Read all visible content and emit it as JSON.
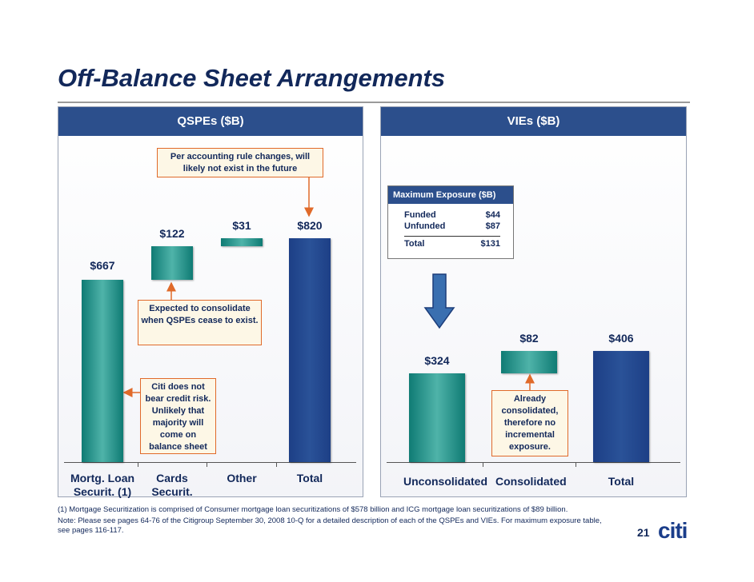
{
  "slide": {
    "title": "Off-Balance Sheet Arrangements",
    "footnotes": [
      "(1) Mortgage Securitization is comprised of Consumer mortgage loan securitizations of $578 billion and  ICG mortgage loan securitizations of $89 billion.",
      "Note: Please see pages 64-76 of the Citigroup September 30, 2008 10-Q for a detailed description of each of the QSPEs and VIEs.  For maximum exposure table, see pages 116-117."
    ],
    "page_number": "21",
    "logo": "citi"
  },
  "chart_data": [
    {
      "type": "waterfall",
      "title": "QSPEs ($B)",
      "categories": [
        "Mortg. Loan Securit. (1)",
        "Cards Securit.",
        "Other",
        "Total"
      ],
      "values": [
        667,
        122,
        31,
        820
      ],
      "value_labels": [
        "$667",
        "$122",
        "$31",
        "$820"
      ],
      "measures": [
        "absolute",
        "relative",
        "relative",
        "total"
      ],
      "colors": [
        "#0f7b74",
        "#0f7b74",
        "#0f7b74",
        "#2a5298"
      ],
      "annotations": [
        "Per accounting rule changes, will likely not exist in the future",
        "Expected to consolidate when QSPEs cease to exist.",
        "Citi does not bear credit risk. Unlikely that majority will come on balance sheet"
      ]
    },
    {
      "type": "waterfall",
      "title": "VIEs ($B)",
      "categories": [
        "Unconsolidated",
        "Consolidated",
        "Total"
      ],
      "values": [
        324,
        82,
        406
      ],
      "value_labels": [
        "$324",
        "$82",
        "$406"
      ],
      "measures": [
        "absolute",
        "relative",
        "total"
      ],
      "colors": [
        "#0f7b74",
        "#0f7b74",
        "#2a5298"
      ],
      "annotations": [
        "Already consolidated, therefore no incremental exposure."
      ],
      "exposure_table": {
        "title": "Maximum Exposure ($B)",
        "rows": [
          [
            "Funded",
            "$44"
          ],
          [
            "Unfunded",
            "$87"
          ]
        ],
        "total": [
          "Total",
          "$131"
        ]
      }
    }
  ]
}
